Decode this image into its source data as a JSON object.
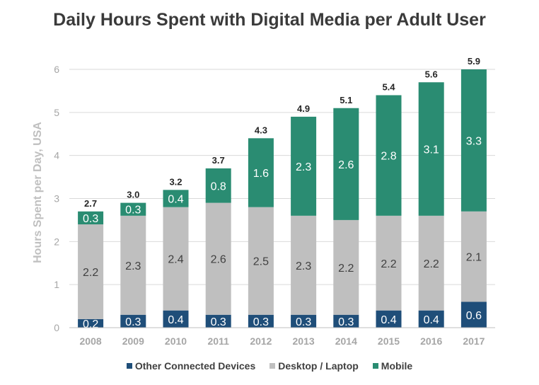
{
  "chart_data": {
    "type": "bar",
    "stacked": true,
    "title": "Daily Hours Spent with Digital Media per Adult User",
    "ylabel": "Hours Spent per Day, USA",
    "xlabel": "",
    "ylim": [
      0,
      6
    ],
    "yticks": [
      "0",
      "1",
      "2",
      "3",
      "4",
      "5",
      "6"
    ],
    "grid": true,
    "legend_position": "bottom",
    "categories": [
      "2008",
      "2009",
      "2010",
      "2011",
      "2012",
      "2013",
      "2014",
      "2015",
      "2016",
      "2017"
    ],
    "totals": [
      "2.7",
      "3.0",
      "3.2",
      "3.7",
      "4.3",
      "4.9",
      "5.1",
      "5.4",
      "5.6",
      "5.9"
    ],
    "series": [
      {
        "name": "Other Connected Devices",
        "color": "#1f4e79",
        "label_color": "#ffffff",
        "values": [
          0.2,
          0.3,
          0.4,
          0.3,
          0.3,
          0.3,
          0.3,
          0.4,
          0.4,
          0.6
        ],
        "labels": [
          "0.2",
          "0.3",
          "0.4",
          "0.3",
          "0.3",
          "0.3",
          "0.3",
          "0.4",
          "0.4",
          "0.6"
        ]
      },
      {
        "name": "Desktop / Laptop",
        "color": "#bfbfbf",
        "label_color": "#404040",
        "values": [
          2.2,
          2.3,
          2.4,
          2.6,
          2.5,
          2.3,
          2.2,
          2.2,
          2.2,
          2.1
        ],
        "labels": [
          "2.2",
          "2.3",
          "2.4",
          "2.6",
          "2.5",
          "2.3",
          "2.2",
          "2.2",
          "2.2",
          "2.1"
        ]
      },
      {
        "name": "Mobile",
        "color": "#2a8c72",
        "label_color": "#ffffff",
        "values": [
          0.3,
          0.3,
          0.4,
          0.8,
          1.6,
          2.3,
          2.6,
          2.8,
          3.1,
          3.3
        ],
        "labels": [
          "0.3",
          "0.3",
          "0.4",
          "0.8",
          "1.6",
          "2.3",
          "2.6",
          "2.8",
          "3.1",
          "3.3"
        ]
      }
    ]
  }
}
